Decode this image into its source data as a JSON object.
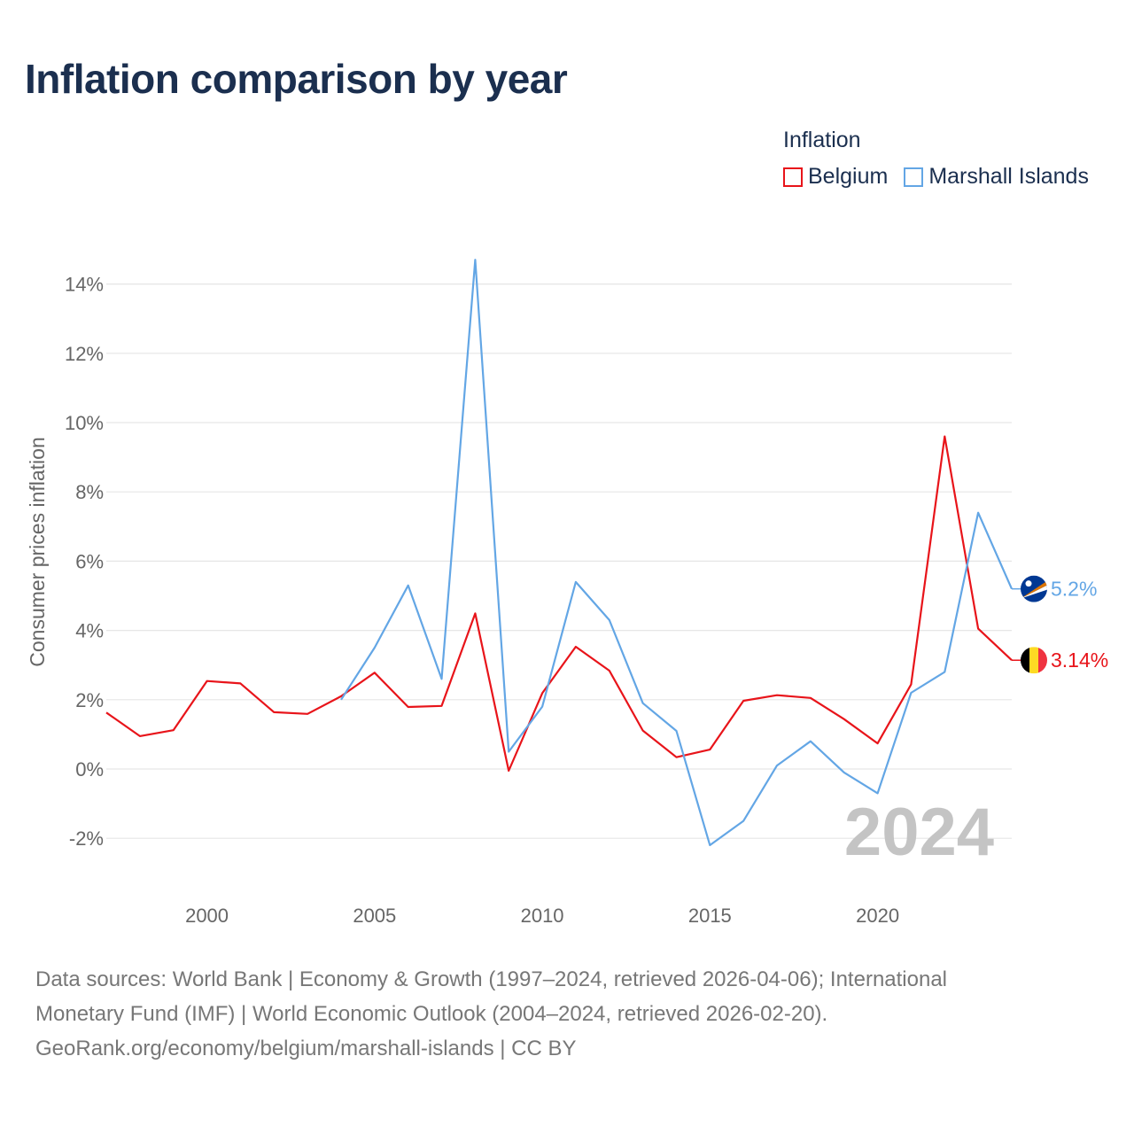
{
  "title": "Inflation comparison by year",
  "legend": {
    "title": "Inflation",
    "items": [
      {
        "label": "Belgium",
        "color": "#e8141a"
      },
      {
        "label": "Marshall Islands",
        "color": "#63a6e5"
      }
    ]
  },
  "footer": {
    "line1": "Data sources: World Bank | Economy & Growth (1997–2024, retrieved 2026-04-06); International",
    "line2": "Monetary Fund (IMF) | World Economic Outlook (2004–2024, retrieved 2026-02-20).",
    "line3": "GeoRank.org/economy/belgium/marshall-islands | CC BY"
  },
  "chart_data": {
    "type": "line",
    "title": "Inflation comparison by year",
    "xlabel": "",
    "ylabel": "Consumer prices inflation",
    "xlim": [
      1997,
      2024
    ],
    "ylim": [
      -3,
      15
    ],
    "x_ticks": [
      2000,
      2005,
      2010,
      2015,
      2020
    ],
    "y_ticks": [
      -2,
      0,
      2,
      4,
      6,
      8,
      10,
      12,
      14
    ],
    "y_tick_labels": [
      "-2%",
      "0%",
      "2%",
      "4%",
      "6%",
      "8%",
      "10%",
      "12%",
      "14%"
    ],
    "grid": true,
    "highlight_year": "2024",
    "series": [
      {
        "name": "Belgium",
        "color": "#e8141a",
        "end_label": "3.14%",
        "x": [
          1997,
          1998,
          1999,
          2000,
          2001,
          2002,
          2003,
          2004,
          2005,
          2006,
          2007,
          2008,
          2009,
          2010,
          2011,
          2012,
          2013,
          2014,
          2015,
          2016,
          2017,
          2018,
          2019,
          2020,
          2021,
          2022,
          2023,
          2024
        ],
        "values": [
          1.63,
          0.95,
          1.12,
          2.54,
          2.47,
          1.64,
          1.59,
          2.1,
          2.78,
          1.79,
          1.82,
          4.49,
          -0.05,
          2.19,
          3.53,
          2.84,
          1.11,
          0.34,
          0.56,
          1.97,
          2.13,
          2.05,
          1.44,
          0.74,
          2.44,
          9.6,
          4.05,
          3.14
        ]
      },
      {
        "name": "Marshall Islands",
        "color": "#63a6e5",
        "end_label": "5.2%",
        "x": [
          2004,
          2005,
          2006,
          2007,
          2008,
          2009,
          2010,
          2011,
          2012,
          2013,
          2014,
          2015,
          2016,
          2017,
          2018,
          2019,
          2020,
          2021,
          2022,
          2023,
          2024
        ],
        "values": [
          2.0,
          3.5,
          5.3,
          2.6,
          14.7,
          0.5,
          1.8,
          5.4,
          4.3,
          1.9,
          1.1,
          -2.2,
          -1.5,
          0.1,
          0.8,
          -0.1,
          -0.7,
          2.2,
          2.8,
          7.4,
          5.2
        ]
      }
    ]
  }
}
